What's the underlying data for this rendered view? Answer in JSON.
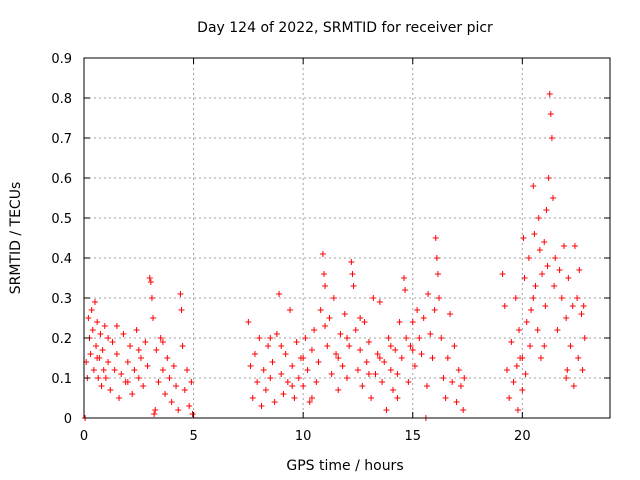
{
  "chart_data": {
    "type": "scatter",
    "title": "Day 124 of 2022, SRMTID for receiver picr",
    "xlabel": "GPS time / hours",
    "ylabel": "SRMTID / TECUs",
    "xlim": [
      0,
      24
    ],
    "ylim": [
      0,
      0.9
    ],
    "xticks": [
      0,
      5,
      10,
      15,
      20
    ],
    "yticks": [
      0,
      0.1,
      0.2,
      0.3,
      0.4,
      0.5,
      0.6,
      0.7,
      0.8,
      0.9
    ],
    "grid": true,
    "marker": "+",
    "series": [
      {
        "name": "SRMTID",
        "color": "#ff0000",
        "points": [
          [
            0.05,
            0.0
          ],
          [
            0.1,
            0.14
          ],
          [
            0.15,
            0.1
          ],
          [
            0.2,
            0.25
          ],
          [
            0.25,
            0.2
          ],
          [
            0.3,
            0.16
          ],
          [
            0.35,
            0.27
          ],
          [
            0.4,
            0.22
          ],
          [
            0.45,
            0.12
          ],
          [
            0.5,
            0.29
          ],
          [
            0.55,
            0.18
          ],
          [
            0.6,
            0.24
          ],
          [
            0.65,
            0.1
          ],
          [
            0.7,
            0.15
          ],
          [
            0.75,
            0.21
          ],
          [
            0.8,
            0.08
          ],
          [
            0.85,
            0.17
          ],
          [
            0.9,
            0.12
          ],
          [
            0.95,
            0.23
          ],
          [
            1.0,
            0.1
          ],
          [
            1.1,
            0.14
          ],
          [
            1.2,
            0.07
          ],
          [
            1.3,
            0.19
          ],
          [
            1.4,
            0.12
          ],
          [
            1.5,
            0.16
          ],
          [
            1.6,
            0.05
          ],
          [
            1.7,
            0.11
          ],
          [
            1.8,
            0.21
          ],
          [
            1.9,
            0.09
          ],
          [
            2.0,
            0.14
          ],
          [
            2.1,
            0.18
          ],
          [
            2.2,
            0.06
          ],
          [
            2.3,
            0.12
          ],
          [
            2.4,
            0.22
          ],
          [
            2.5,
            0.1
          ],
          [
            2.6,
            0.15
          ],
          [
            2.7,
            0.08
          ],
          [
            2.8,
            0.19
          ],
          [
            2.9,
            0.13
          ],
          [
            3.0,
            0.35
          ],
          [
            3.05,
            0.34
          ],
          [
            3.1,
            0.3
          ],
          [
            3.15,
            0.25
          ],
          [
            3.2,
            0.01
          ],
          [
            3.25,
            0.02
          ],
          [
            3.3,
            0.17
          ],
          [
            3.4,
            0.09
          ],
          [
            3.5,
            0.2
          ],
          [
            3.6,
            0.12
          ],
          [
            3.7,
            0.06
          ],
          [
            3.8,
            0.15
          ],
          [
            3.9,
            0.1
          ],
          [
            4.0,
            0.04
          ],
          [
            4.1,
            0.13
          ],
          [
            4.2,
            0.08
          ],
          [
            4.3,
            0.02
          ],
          [
            4.4,
            0.31
          ],
          [
            4.45,
            0.27
          ],
          [
            4.5,
            0.18
          ],
          [
            4.6,
            0.07
          ],
          [
            4.7,
            0.12
          ],
          [
            4.8,
            0.03
          ],
          [
            4.9,
            0.09
          ],
          [
            4.95,
            0.01
          ],
          [
            0.6,
            0.15
          ],
          [
            1.5,
            0.23
          ],
          [
            2.5,
            0.17
          ],
          [
            3.6,
            0.19
          ],
          [
            1.1,
            0.2
          ],
          [
            2.0,
            0.09
          ],
          [
            7.5,
            0.24
          ],
          [
            7.6,
            0.13
          ],
          [
            7.7,
            0.05
          ],
          [
            7.8,
            0.16
          ],
          [
            7.9,
            0.09
          ],
          [
            8.0,
            0.2
          ],
          [
            8.1,
            0.03
          ],
          [
            8.2,
            0.12
          ],
          [
            8.3,
            0.07
          ],
          [
            8.4,
            0.18
          ],
          [
            8.5,
            0.1
          ],
          [
            8.6,
            0.14
          ],
          [
            8.7,
            0.04
          ],
          [
            8.8,
            0.21
          ],
          [
            8.9,
            0.31
          ],
          [
            9.0,
            0.11
          ],
          [
            9.1,
            0.06
          ],
          [
            9.2,
            0.16
          ],
          [
            9.3,
            0.09
          ],
          [
            9.4,
            0.27
          ],
          [
            9.5,
            0.13
          ],
          [
            9.6,
            0.05
          ],
          [
            9.7,
            0.19
          ],
          [
            9.8,
            0.1
          ],
          [
            9.9,
            0.15
          ],
          [
            10.0,
            0.08
          ],
          [
            10.1,
            0.2
          ],
          [
            10.2,
            0.12
          ],
          [
            10.3,
            0.04
          ],
          [
            10.4,
            0.17
          ],
          [
            10.5,
            0.22
          ],
          [
            10.6,
            0.09
          ],
          [
            10.7,
            0.14
          ],
          [
            10.8,
            0.27
          ],
          [
            10.9,
            0.41
          ],
          [
            10.95,
            0.36
          ],
          [
            11.0,
            0.33
          ],
          [
            11.1,
            0.18
          ],
          [
            11.2,
            0.25
          ],
          [
            11.3,
            0.11
          ],
          [
            11.4,
            0.3
          ],
          [
            11.5,
            0.16
          ],
          [
            11.6,
            0.07
          ],
          [
            11.7,
            0.21
          ],
          [
            11.8,
            0.13
          ],
          [
            11.9,
            0.26
          ],
          [
            12.0,
            0.1
          ],
          [
            12.1,
            0.18
          ],
          [
            12.2,
            0.39
          ],
          [
            12.25,
            0.36
          ],
          [
            12.3,
            0.33
          ],
          [
            12.4,
            0.22
          ],
          [
            12.5,
            0.12
          ],
          [
            12.6,
            0.17
          ],
          [
            12.7,
            0.08
          ],
          [
            12.8,
            0.24
          ],
          [
            12.9,
            0.14
          ],
          [
            13.0,
            0.19
          ],
          [
            13.1,
            0.05
          ],
          [
            13.2,
            0.3
          ],
          [
            13.3,
            0.11
          ],
          [
            13.4,
            0.16
          ],
          [
            13.5,
            0.29
          ],
          [
            13.6,
            0.09
          ],
          [
            13.7,
            0.14
          ],
          [
            13.8,
            0.02
          ],
          [
            13.9,
            0.2
          ],
          [
            14.0,
            0.12
          ],
          [
            14.1,
            0.07
          ],
          [
            14.2,
            0.17
          ],
          [
            14.3,
            0.11
          ],
          [
            14.4,
            0.24
          ],
          [
            14.5,
            0.15
          ],
          [
            14.6,
            0.35
          ],
          [
            14.65,
            0.32
          ],
          [
            14.7,
            0.2
          ],
          [
            14.8,
            0.09
          ],
          [
            14.9,
            0.18
          ],
          [
            15.0,
            0.24
          ],
          [
            15.1,
            0.13
          ],
          [
            15.2,
            0.27
          ],
          [
            15.3,
            0.2
          ],
          [
            15.4,
            0.16
          ],
          [
            15.5,
            0.25
          ],
          [
            15.6,
            0.0
          ],
          [
            15.65,
            0.08
          ],
          [
            15.7,
            0.31
          ],
          [
            15.8,
            0.21
          ],
          [
            15.9,
            0.15
          ],
          [
            16.0,
            0.27
          ],
          [
            16.05,
            0.45
          ],
          [
            16.1,
            0.4
          ],
          [
            16.15,
            0.36
          ],
          [
            16.2,
            0.3
          ],
          [
            16.3,
            0.2
          ],
          [
            16.4,
            0.1
          ],
          [
            16.5,
            0.05
          ],
          [
            16.6,
            0.15
          ],
          [
            16.7,
            0.26
          ],
          [
            16.8,
            0.09
          ],
          [
            16.9,
            0.18
          ],
          [
            17.0,
            0.04
          ],
          [
            17.1,
            0.12
          ],
          [
            17.2,
            0.08
          ],
          [
            17.3,
            0.02
          ],
          [
            17.35,
            0.1
          ],
          [
            8.5,
            0.2
          ],
          [
            9.0,
            0.18
          ],
          [
            9.5,
            0.08
          ],
          [
            10.0,
            0.15
          ],
          [
            11.0,
            0.23
          ],
          [
            12.0,
            0.2
          ],
          [
            12.6,
            0.25
          ],
          [
            13.5,
            0.15
          ],
          [
            14.0,
            0.18
          ],
          [
            15.0,
            0.17
          ],
          [
            10.4,
            0.05
          ],
          [
            11.6,
            0.15
          ],
          [
            13.0,
            0.11
          ],
          [
            14.3,
            0.05
          ],
          [
            19.1,
            0.36
          ],
          [
            19.2,
            0.28
          ],
          [
            19.3,
            0.12
          ],
          [
            19.4,
            0.05
          ],
          [
            19.5,
            0.19
          ],
          [
            19.6,
            0.09
          ],
          [
            19.7,
            0.3
          ],
          [
            19.75,
            0.13
          ],
          [
            19.8,
            0.02
          ],
          [
            19.85,
            0.22
          ],
          [
            19.9,
            0.15
          ],
          [
            20.0,
            0.07
          ],
          [
            20.05,
            0.45
          ],
          [
            20.1,
            0.35
          ],
          [
            20.15,
            0.11
          ],
          [
            20.2,
            0.24
          ],
          [
            20.3,
            0.4
          ],
          [
            20.35,
            0.18
          ],
          [
            20.4,
            0.27
          ],
          [
            20.5,
            0.58
          ],
          [
            20.55,
            0.46
          ],
          [
            20.6,
            0.33
          ],
          [
            20.7,
            0.22
          ],
          [
            20.75,
            0.5
          ],
          [
            20.8,
            0.42
          ],
          [
            20.85,
            0.15
          ],
          [
            20.9,
            0.36
          ],
          [
            21.0,
            0.44
          ],
          [
            21.05,
            0.28
          ],
          [
            21.1,
            0.52
          ],
          [
            21.15,
            0.38
          ],
          [
            21.2,
            0.6
          ],
          [
            21.25,
            0.81
          ],
          [
            21.3,
            0.76
          ],
          [
            21.35,
            0.7
          ],
          [
            21.4,
            0.55
          ],
          [
            21.45,
            0.33
          ],
          [
            21.5,
            0.4
          ],
          [
            21.6,
            0.22
          ],
          [
            21.7,
            0.37
          ],
          [
            21.8,
            0.3
          ],
          [
            21.9,
            0.43
          ],
          [
            22.0,
            0.25
          ],
          [
            22.05,
            0.12
          ],
          [
            22.1,
            0.35
          ],
          [
            22.2,
            0.18
          ],
          [
            22.3,
            0.28
          ],
          [
            22.35,
            0.08
          ],
          [
            22.4,
            0.43
          ],
          [
            22.5,
            0.3
          ],
          [
            22.55,
            0.15
          ],
          [
            22.6,
            0.37
          ],
          [
            22.7,
            0.26
          ],
          [
            22.75,
            0.12
          ],
          [
            22.8,
            0.28
          ],
          [
            22.85,
            0.2
          ],
          [
            20.0,
            0.15
          ],
          [
            20.5,
            0.3
          ],
          [
            21.0,
            0.18
          ],
          [
            22.0,
            0.1
          ]
        ]
      }
    ]
  }
}
